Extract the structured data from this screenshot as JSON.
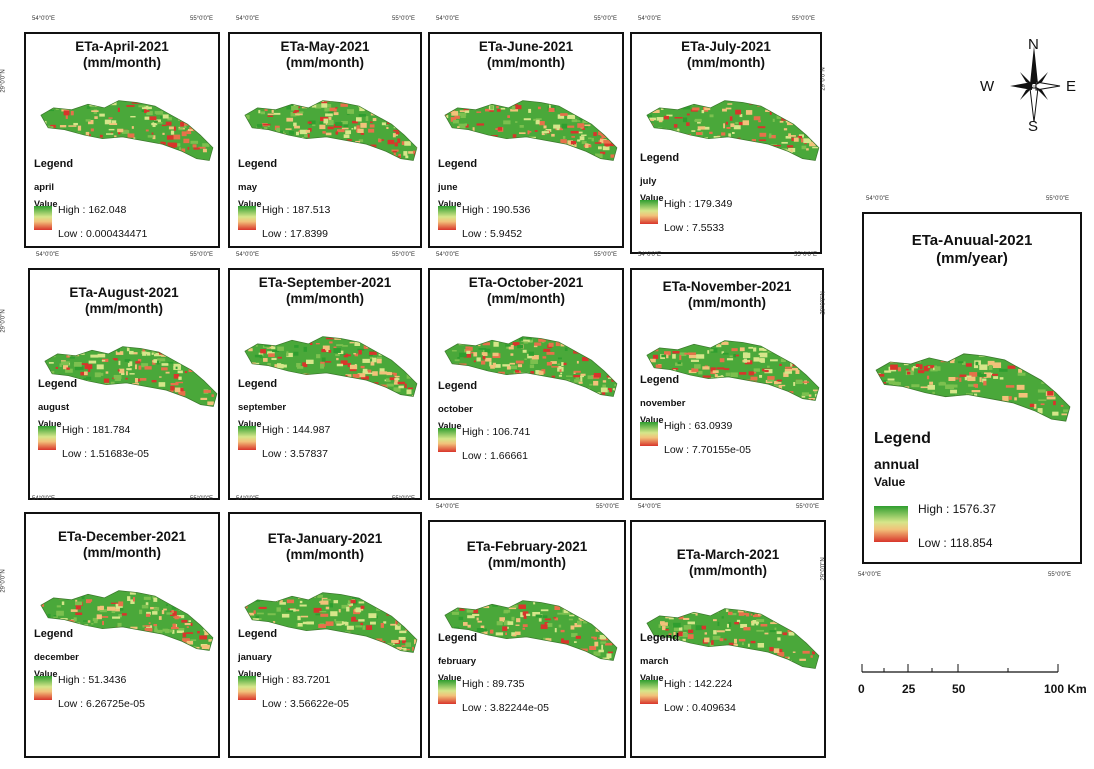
{
  "coords": {
    "lon_left": "54°0'0\"E",
    "lon_right": "55°0'0\"E",
    "lat_top": "29°0'0\"N",
    "lat_bottom": "28°0'0\"N"
  },
  "panels": [
    {
      "id": "april",
      "title": "ETa-April-2021",
      "unit": "(mm/month)",
      "legend_title": "Legend",
      "layer_name": "april",
      "value_label": "Value",
      "high": "High : 162.048",
      "low": "Low : 0.000434471"
    },
    {
      "id": "may",
      "title": "ETa-May-2021",
      "unit": "(mm/month)",
      "legend_title": "Legend",
      "layer_name": "may",
      "value_label": "Value",
      "high": "High : 187.513",
      "low": "Low : 17.8399"
    },
    {
      "id": "june",
      "title": "ETa-June-2021",
      "unit": "(mm/month)",
      "legend_title": "Legend",
      "layer_name": "june",
      "value_label": "Value",
      "high": "High : 190.536",
      "low": "Low : 5.9452"
    },
    {
      "id": "july",
      "title": "ETa-July-2021",
      "unit": "(mm/month)",
      "legend_title": "Legend",
      "layer_name": "july",
      "value_label": "Value",
      "high": "High : 179.349",
      "low": "Low : 7.5533"
    },
    {
      "id": "august",
      "title": "ETa-August-2021",
      "unit": "(mm/month)",
      "legend_title": "Legend",
      "layer_name": "august",
      "value_label": "Value",
      "high": "High : 181.784",
      "low": "Low : 1.51683e-05"
    },
    {
      "id": "september",
      "title": "ETa-September-2021",
      "unit": "(mm/month)",
      "legend_title": "Legend",
      "layer_name": "september",
      "value_label": "Value",
      "high": "High : 144.987",
      "low": "Low : 3.57837"
    },
    {
      "id": "october",
      "title": "ETa-October-2021",
      "unit": "(mm/month)",
      "legend_title": "Legend",
      "layer_name": "october",
      "value_label": "Value",
      "high": "High : 106.741",
      "low": "Low : 1.66661"
    },
    {
      "id": "november",
      "title": "ETa-November-2021",
      "unit": "(mm/month)",
      "legend_title": "Legend",
      "layer_name": "november",
      "value_label": "Value",
      "high": "High : 63.0939",
      "low": "Low : 7.70155e-05"
    },
    {
      "id": "december",
      "title": "ETa-December-2021",
      "unit": "(mm/month)",
      "legend_title": "Legend",
      "layer_name": "december",
      "value_label": "Value",
      "high": "High : 51.3436",
      "low": "Low : 6.26725e-05"
    },
    {
      "id": "january",
      "title": "ETa-January-2021",
      "unit": "(mm/month)",
      "legend_title": "Legend",
      "layer_name": "january",
      "value_label": "Value",
      "high": "High : 83.7201",
      "low": "Low : 3.56622e-05"
    },
    {
      "id": "february",
      "title": "ETa-February-2021",
      "unit": "(mm/month)",
      "legend_title": "Legend",
      "layer_name": "february",
      "value_label": "Value",
      "high": "High : 89.735",
      "low": "Low : 3.82244e-05"
    },
    {
      "id": "march",
      "title": "ETa-March-2021",
      "unit": "(mm/month)",
      "legend_title": "Legend",
      "layer_name": "march",
      "value_label": "Value",
      "high": "High : 142.224",
      "low": "Low : 0.409634"
    }
  ],
  "annual": {
    "title": "ETa-Anuual-2021",
    "unit": "(mm/year)",
    "legend_title": "Legend",
    "layer_name": "annual",
    "value_label": "Value",
    "high": "High : 1576.37",
    "low": "Low : 118.854"
  },
  "compass": {
    "n": "N",
    "s": "S",
    "e": "E",
    "w": "W",
    "icon": "north-arrow-compass"
  },
  "scale": {
    "labels": [
      "0",
      "25",
      "50",
      "100 Km"
    ]
  },
  "colors": {
    "high": "#2f9e2f",
    "mid": "#d6e68a",
    "low": "#d8352b",
    "frame": "#111111"
  }
}
